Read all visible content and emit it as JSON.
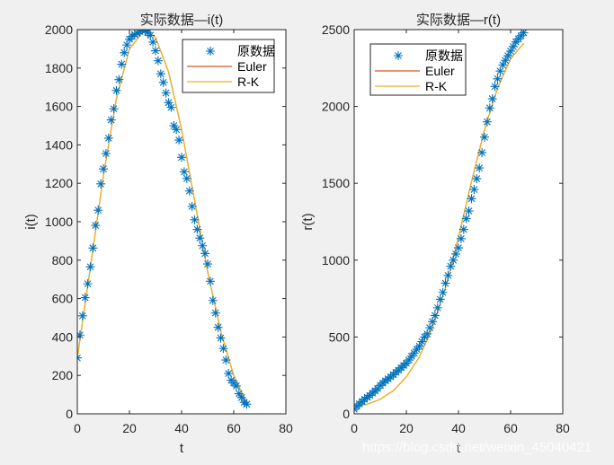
{
  "chart_data": [
    {
      "type": "line",
      "title": "实际数据—i(t)",
      "xlabel": "t",
      "ylabel": "i(t)",
      "xlim": [
        0,
        80
      ],
      "ylim": [
        0,
        2000
      ],
      "xticks": [
        0,
        20,
        40,
        60,
        80
      ],
      "yticks": [
        0,
        200,
        400,
        600,
        800,
        1000,
        1200,
        1400,
        1600,
        1800,
        2000
      ],
      "grid": false,
      "legend_position": "upper right",
      "legend": [
        "原数据",
        "Euler",
        "R-K"
      ],
      "series": [
        {
          "name": "原数据",
          "style": "scatter-asterisk",
          "color": "#0072bd",
          "x": [
            0,
            1,
            2,
            3,
            4,
            5,
            6,
            7,
            8,
            9,
            10,
            11,
            12,
            13,
            14,
            15,
            16,
            17,
            18,
            19,
            20,
            21,
            22,
            23,
            24,
            25,
            26,
            27,
            28,
            29,
            30,
            31,
            32,
            33,
            34,
            35,
            36,
            37,
            38,
            39,
            40,
            41,
            42,
            43,
            44,
            45,
            46,
            47,
            48,
            49,
            50,
            51,
            52,
            53,
            54,
            55,
            56,
            57,
            58,
            59,
            60,
            61,
            62,
            63,
            64,
            65
          ],
          "y": [
            291,
            410,
            510,
            605,
            677,
            765,
            863,
            981,
            1060,
            1197,
            1275,
            1355,
            1435,
            1530,
            1588,
            1683,
            1740,
            1820,
            1880,
            1920,
            1950,
            1965,
            1975,
            1980,
            1990,
            2000,
            1995,
            1985,
            1970,
            1935,
            1890,
            1838,
            1770,
            1725,
            1670,
            1620,
            1595,
            1500,
            1480,
            1425,
            1335,
            1260,
            1225,
            1160,
            1080,
            1010,
            960,
            915,
            875,
            835,
            780,
            690,
            590,
            525,
            450,
            395,
            340,
            280,
            210,
            175,
            160,
            145,
            105,
            85,
            60,
            50
          ]
        },
        {
          "name": "Euler",
          "style": "line",
          "color": "#d95319",
          "x": [
            0,
            5,
            10,
            15,
            20,
            25,
            27,
            30,
            35,
            40,
            45,
            50,
            55,
            60,
            65
          ],
          "y": [
            291,
            760,
            1240,
            1640,
            1900,
            1985,
            1990,
            1960,
            1780,
            1480,
            1110,
            740,
            430,
            200,
            55
          ]
        },
        {
          "name": "R-K",
          "style": "line",
          "color": "#edb120",
          "x": [
            0,
            5,
            10,
            15,
            20,
            25,
            27,
            30,
            35,
            40,
            45,
            50,
            55,
            60,
            65
          ],
          "y": [
            291,
            760,
            1240,
            1640,
            1900,
            1985,
            1990,
            1960,
            1780,
            1480,
            1110,
            740,
            430,
            200,
            55
          ]
        }
      ]
    },
    {
      "type": "line",
      "title": "实际数据—r(t)",
      "xlabel": "t",
      "ylabel": "r(t)",
      "xlim": [
        0,
        80
      ],
      "ylim": [
        0,
        2500
      ],
      "xticks": [
        0,
        20,
        40,
        60,
        80
      ],
      "yticks": [
        0,
        500,
        1000,
        1500,
        2000,
        2500
      ],
      "grid": false,
      "legend_position": "upper left",
      "legend": [
        "原数据",
        "Euler",
        "R-K"
      ],
      "series": [
        {
          "name": "原数据",
          "style": "scatter-asterisk",
          "color": "#0072bd",
          "x": [
            0,
            1,
            2,
            3,
            4,
            5,
            6,
            7,
            8,
            9,
            10,
            11,
            12,
            13,
            14,
            15,
            16,
            17,
            18,
            19,
            20,
            21,
            22,
            23,
            24,
            25,
            26,
            27,
            28,
            29,
            30,
            31,
            32,
            33,
            34,
            35,
            36,
            37,
            38,
            39,
            40,
            41,
            42,
            43,
            44,
            45,
            46,
            47,
            48,
            49,
            50,
            51,
            52,
            53,
            54,
            55,
            56,
            57,
            58,
            59,
            60,
            61,
            62,
            63,
            64,
            65
          ],
          "y": [
            30,
            48,
            65,
            80,
            95,
            108,
            120,
            135,
            150,
            165,
            185,
            200,
            215,
            228,
            240,
            255,
            270,
            285,
            300,
            315,
            330,
            350,
            375,
            395,
            420,
            440,
            470,
            500,
            520,
            560,
            600,
            640,
            690,
            745,
            790,
            850,
            900,
            960,
            1000,
            1040,
            1080,
            1140,
            1200,
            1270,
            1320,
            1400,
            1460,
            1530,
            1600,
            1700,
            1800,
            1900,
            1990,
            2050,
            2130,
            2180,
            2230,
            2270,
            2300,
            2330,
            2360,
            2390,
            2420,
            2440,
            2460,
            2480
          ]
        },
        {
          "name": "Euler",
          "style": "line",
          "color": "#d95319",
          "x": [
            0,
            5,
            10,
            15,
            20,
            25,
            30,
            35,
            40,
            45,
            50,
            55,
            60,
            65
          ],
          "y": [
            50,
            62,
            95,
            150,
            240,
            370,
            560,
            820,
            1150,
            1510,
            1850,
            2120,
            2310,
            2410
          ]
        },
        {
          "name": "R-K",
          "style": "line",
          "color": "#edb120",
          "x": [
            0,
            5,
            10,
            15,
            20,
            25,
            30,
            35,
            40,
            45,
            50,
            55,
            60,
            65
          ],
          "y": [
            50,
            62,
            95,
            150,
            240,
            370,
            560,
            820,
            1150,
            1510,
            1850,
            2120,
            2310,
            2410
          ]
        }
      ]
    }
  ],
  "watermark": "https://blog.csdn.net/weixin_45040421"
}
